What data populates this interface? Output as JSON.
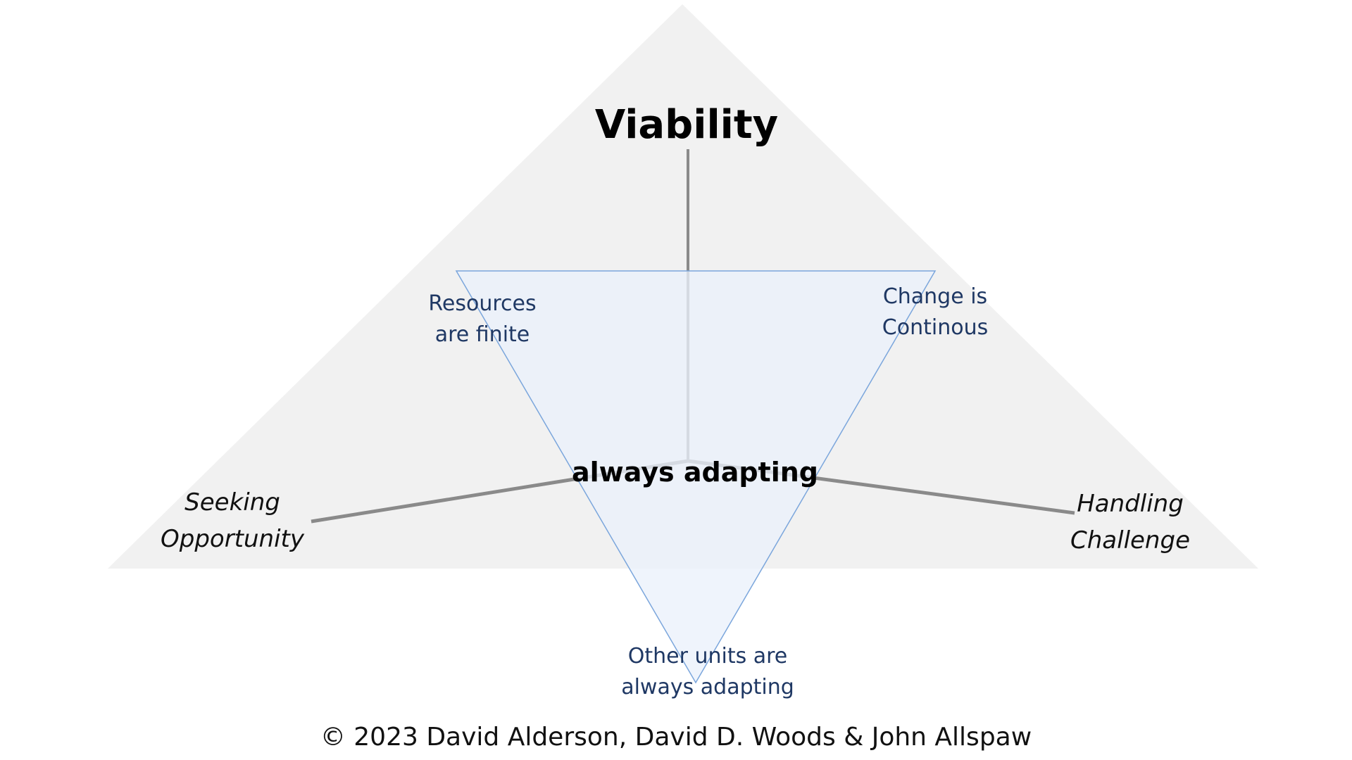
{
  "diagram": {
    "title": "Viability",
    "center": "always adapting",
    "axes": {
      "left": [
        "Seeking",
        "Opportunity"
      ],
      "right": [
        "Handling",
        "Challenge"
      ]
    },
    "corners": {
      "top_left": [
        "Resources",
        "are finite"
      ],
      "top_right": [
        "Change is",
        "Continous"
      ],
      "bottom": [
        "Other units are",
        "always adapting"
      ]
    }
  },
  "footer": "© 2023 David Alderson, David D. Woods & John Allspaw",
  "colors": {
    "outer_triangle_fill": "#f1f1f1",
    "inner_triangle_fill": "#eaf1fb",
    "inner_triangle_stroke": "#7ba6dc",
    "axis_line": "#8a8a8a",
    "corner_text": "#1f3864"
  }
}
